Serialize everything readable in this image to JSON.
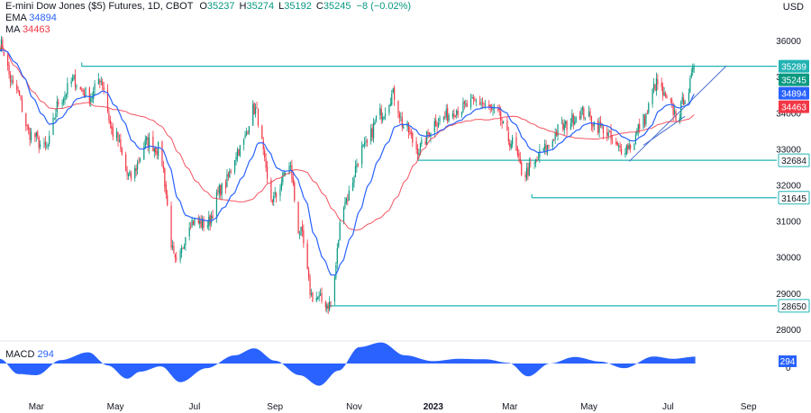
{
  "header": {
    "title": "E-mini Dow Jones ($5) Futures, 1D, CBOT",
    "o_label": "O",
    "o_value": "35237",
    "h_label": "H",
    "h_value": "35274",
    "l_label": "L",
    "l_value": "35192",
    "c_label": "C",
    "c_value": "35245",
    "change": "−8 (−0.02%)"
  },
  "indicators": {
    "ema_label": "EMA",
    "ema_value": "34894",
    "ma_label": "MA",
    "ma_value": "34463",
    "macd_label": "MACD",
    "macd_value": "294"
  },
  "currency": "USD",
  "colors": {
    "up": "#089981",
    "down": "#f23645",
    "ema": "#2962ff",
    "ma": "#f23645",
    "level": "#22b3b3",
    "trend": "#4a6fd1",
    "macd": "#2962ff"
  },
  "chart_data": {
    "type": "candlestick",
    "y_ticks": [
      "36000",
      "35000",
      "34000",
      "33000",
      "32000",
      "31000",
      "30000",
      "29000",
      "28000"
    ],
    "ylim": [
      27700,
      36750
    ],
    "x_ticks": [
      "Mar",
      "May",
      "Jul",
      "Sep",
      "Nov",
      "2023",
      "Mar",
      "May",
      "Jul",
      "Sep"
    ],
    "price_path": [
      [
        "2022-02-01",
        35900
      ],
      [
        "2022-02-12",
        34700
      ],
      [
        "2022-02-25",
        33400
      ],
      [
        "2022-03-08",
        33000
      ],
      [
        "2022-03-20",
        34400
      ],
      [
        "2022-03-30",
        34900
      ],
      [
        "2022-04-05",
        34600
      ],
      [
        "2022-04-12",
        34450
      ],
      [
        "2022-04-19",
        34950
      ],
      [
        "2022-04-30",
        33400
      ],
      [
        "2022-05-12",
        32200
      ],
      [
        "2022-05-26",
        33200
      ],
      [
        "2022-06-03",
        33000
      ],
      [
        "2022-06-17",
        29800
      ],
      [
        "2022-06-28",
        31000
      ],
      [
        "2022-07-10",
        30900
      ],
      [
        "2022-07-22",
        31900
      ],
      [
        "2022-08-05",
        33000
      ],
      [
        "2022-08-16",
        34100
      ],
      [
        "2022-08-30",
        31600
      ],
      [
        "2022-09-12",
        32500
      ],
      [
        "2022-09-20",
        30700
      ],
      [
        "2022-09-30",
        28900
      ],
      [
        "2022-10-13",
        28700
      ],
      [
        "2022-10-25",
        31600
      ],
      [
        "2022-11-08",
        33000
      ],
      [
        "2022-11-22",
        34000
      ],
      [
        "2022-12-01",
        34500
      ],
      [
        "2022-12-10",
        33600
      ],
      [
        "2022-12-20",
        33000
      ],
      [
        "2023-01-05",
        33800
      ],
      [
        "2023-01-20",
        34100
      ],
      [
        "2023-02-05",
        34300
      ],
      [
        "2023-02-18",
        34000
      ],
      [
        "2023-03-02",
        33200
      ],
      [
        "2023-03-12",
        32300
      ],
      [
        "2023-03-18",
        32500
      ],
      [
        "2023-03-28",
        33000
      ],
      [
        "2023-04-10",
        33600
      ],
      [
        "2023-04-25",
        34000
      ],
      [
        "2023-05-10",
        33600
      ],
      [
        "2023-05-24",
        33000
      ],
      [
        "2023-06-02",
        33100
      ],
      [
        "2023-06-12",
        33800
      ],
      [
        "2023-06-22",
        34800
      ],
      [
        "2023-07-01",
        34300
      ],
      [
        "2023-07-08",
        33900
      ],
      [
        "2023-07-15",
        34500
      ],
      [
        "2023-07-22",
        35245
      ]
    ],
    "ema_value": 34894,
    "ma_value": 34463,
    "horizontal_levels": [
      {
        "price": 35289,
        "label": "35289",
        "from": "2022-04-05"
      },
      {
        "price": 32684,
        "label": "32684",
        "from": "2022-12-20"
      },
      {
        "price": 31645,
        "label": "31645",
        "from": "2023-03-18"
      },
      {
        "price": 28650,
        "label": "28650",
        "from": "2022-10-13"
      }
    ],
    "trendlines": [
      {
        "from": [
          "2023-06-01",
          32650
        ],
        "to": [
          "2023-08-15",
          35300
        ]
      },
      {
        "from": [
          "2023-06-12",
          33100
        ],
        "to": [
          "2023-07-14",
          33900
        ]
      }
    ],
    "price_badges": [
      {
        "label": "35289",
        "price": 35289,
        "style": "level"
      },
      {
        "label": "35245",
        "price": 35245,
        "style": "up"
      },
      {
        "label": "34894",
        "price": 34894,
        "style": "ema"
      },
      {
        "label": "34463",
        "price": 34463,
        "style": "ma"
      },
      {
        "label": "32684",
        "price": 32684,
        "style": "outline"
      },
      {
        "label": "31645",
        "price": 31645,
        "style": "outline"
      },
      {
        "label": "28650",
        "price": 28650,
        "style": "outline"
      }
    ],
    "macd": {
      "axis_labels": [
        "0"
      ],
      "value_badge": "294",
      "path": [
        [
          "2022-02-01",
          200
        ],
        [
          "2022-02-15",
          -450
        ],
        [
          "2022-03-01",
          -500
        ],
        [
          "2022-03-20",
          150
        ],
        [
          "2022-04-10",
          480
        ],
        [
          "2022-04-25",
          -80
        ],
        [
          "2022-05-10",
          -650
        ],
        [
          "2022-05-20",
          -350
        ],
        [
          "2022-06-05",
          -120
        ],
        [
          "2022-06-20",
          -800
        ],
        [
          "2022-07-10",
          -200
        ],
        [
          "2022-08-01",
          350
        ],
        [
          "2022-08-16",
          650
        ],
        [
          "2022-09-01",
          120
        ],
        [
          "2022-09-20",
          -500
        ],
        [
          "2022-10-05",
          -950
        ],
        [
          "2022-10-20",
          -300
        ],
        [
          "2022-11-05",
          700
        ],
        [
          "2022-11-22",
          900
        ],
        [
          "2022-12-10",
          350
        ],
        [
          "2023-01-01",
          100
        ],
        [
          "2023-01-20",
          200
        ],
        [
          "2023-02-10",
          180
        ],
        [
          "2023-02-28",
          30
        ],
        [
          "2023-03-15",
          -550
        ],
        [
          "2023-04-01",
          0
        ],
        [
          "2023-04-20",
          280
        ],
        [
          "2023-05-10",
          80
        ],
        [
          "2023-05-28",
          -200
        ],
        [
          "2023-06-20",
          300
        ],
        [
          "2023-07-05",
          200
        ],
        [
          "2023-07-22",
          294
        ]
      ]
    }
  }
}
